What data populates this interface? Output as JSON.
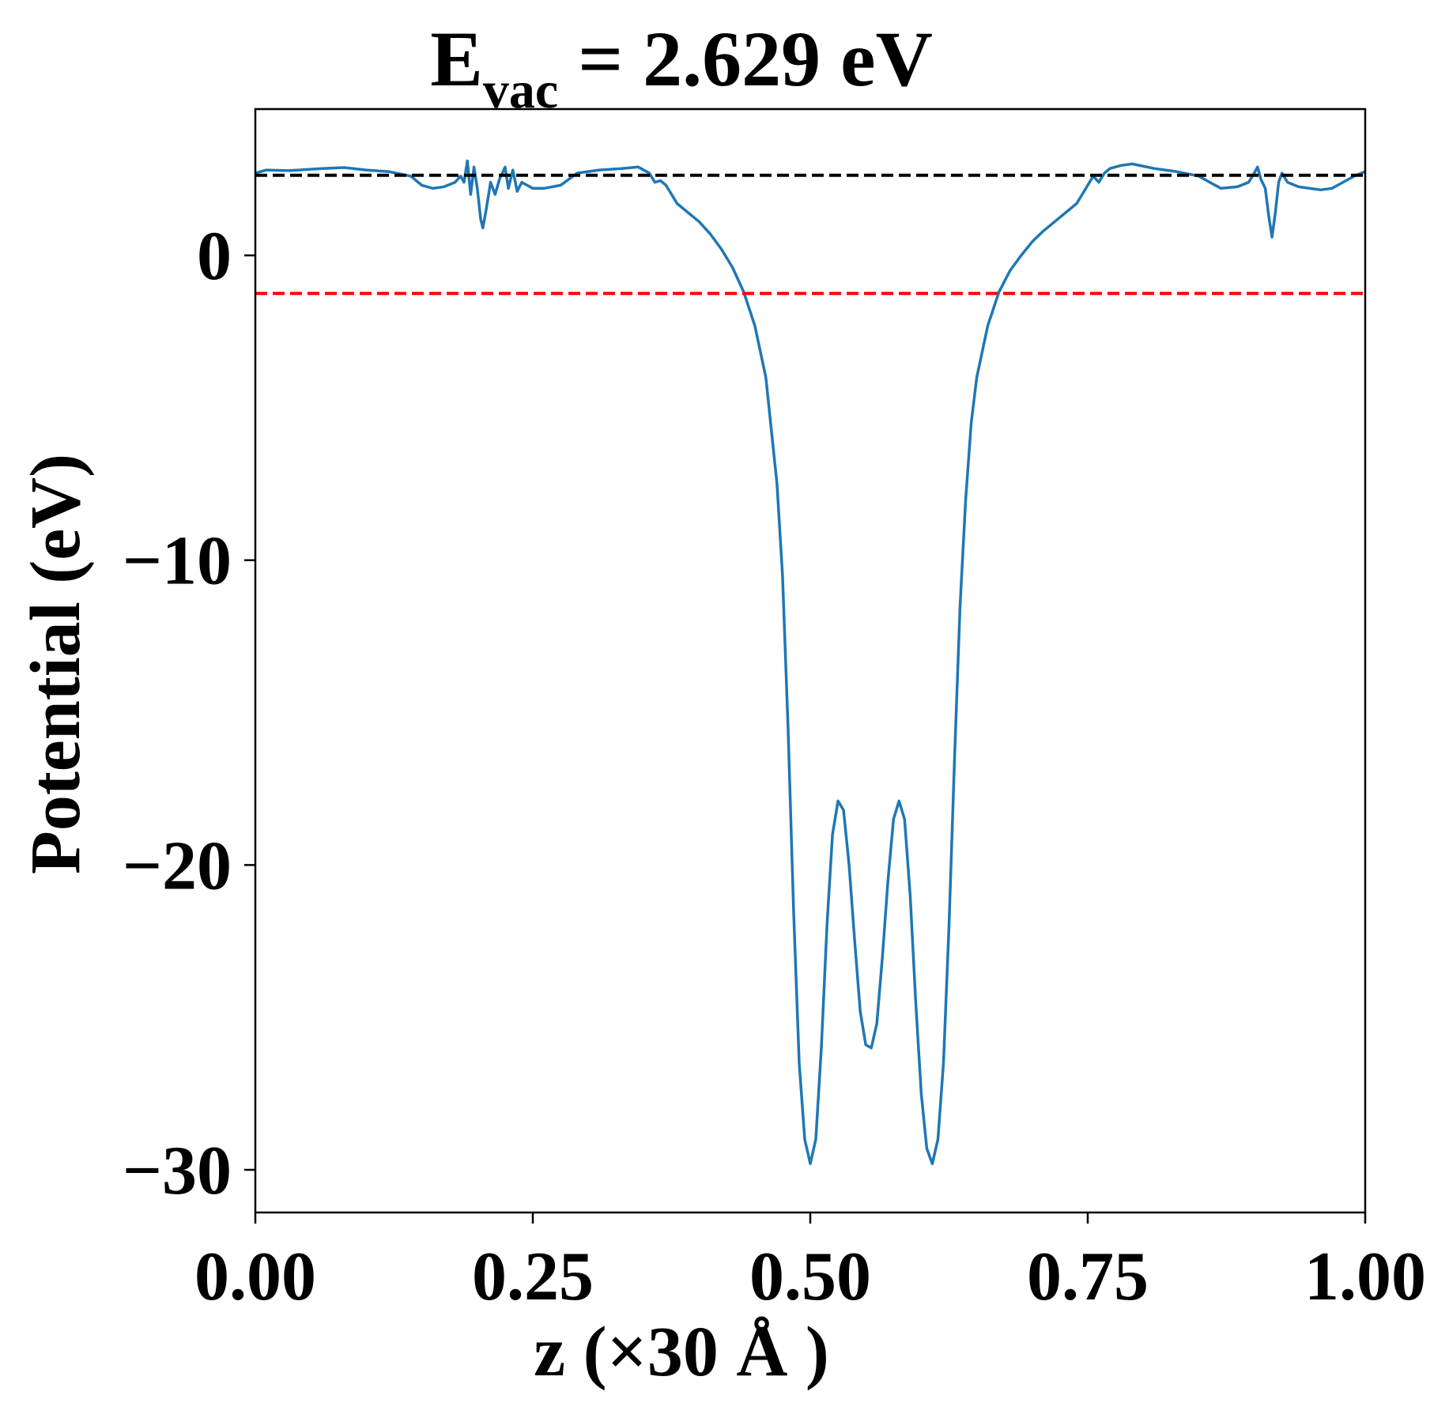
{
  "chart_data": {
    "type": "line",
    "title": {
      "prefix": "E",
      "subscript": "vac",
      "suffix": " = 2.629 eV"
    },
    "xlabel": "z (×30 Å )",
    "ylabel": "Potential (eV)",
    "xlim": [
      0.0,
      1.0
    ],
    "ylim": [
      -31.4,
      4.8
    ],
    "xticks": [
      {
        "value": 0.0,
        "label": "0.00"
      },
      {
        "value": 0.25,
        "label": "0.25"
      },
      {
        "value": 0.5,
        "label": "0.50"
      },
      {
        "value": 0.75,
        "label": "0.75"
      },
      {
        "value": 1.0,
        "label": "1.00"
      }
    ],
    "yticks": [
      {
        "value": 0,
        "label": "0"
      },
      {
        "value": -10,
        "label": "−10"
      },
      {
        "value": -20,
        "label": "−20"
      },
      {
        "value": -30,
        "label": "−30"
      }
    ],
    "grid": false,
    "reference_lines": [
      {
        "kind": "vacuum level",
        "y": 2.629,
        "color": "#000000",
        "style": "dashed"
      },
      {
        "kind": "fermi level",
        "y": -1.25,
        "color": "#ff0000",
        "style": "dashed"
      }
    ],
    "series": [
      {
        "color": "#1f77b4",
        "points": [
          [
            0.0,
            2.7
          ],
          [
            0.01,
            2.8
          ],
          [
            0.03,
            2.78
          ],
          [
            0.06,
            2.85
          ],
          [
            0.08,
            2.88
          ],
          [
            0.1,
            2.8
          ],
          [
            0.12,
            2.75
          ],
          [
            0.14,
            2.6
          ],
          [
            0.15,
            2.3
          ],
          [
            0.16,
            2.2
          ],
          [
            0.17,
            2.25
          ],
          [
            0.18,
            2.4
          ],
          [
            0.185,
            2.6
          ],
          [
            0.188,
            2.4
          ],
          [
            0.191,
            3.1
          ],
          [
            0.194,
            2.0
          ],
          [
            0.197,
            2.9
          ],
          [
            0.2,
            2.2
          ],
          [
            0.203,
            1.2
          ],
          [
            0.205,
            0.9
          ],
          [
            0.208,
            1.5
          ],
          [
            0.212,
            2.4
          ],
          [
            0.216,
            2.0
          ],
          [
            0.22,
            2.5
          ],
          [
            0.225,
            2.9
          ],
          [
            0.228,
            2.2
          ],
          [
            0.232,
            2.8
          ],
          [
            0.236,
            2.1
          ],
          [
            0.24,
            2.4
          ],
          [
            0.25,
            2.2
          ],
          [
            0.26,
            2.2
          ],
          [
            0.275,
            2.3
          ],
          [
            0.29,
            2.7
          ],
          [
            0.31,
            2.8
          ],
          [
            0.33,
            2.85
          ],
          [
            0.345,
            2.9
          ],
          [
            0.355,
            2.7
          ],
          [
            0.36,
            2.4
          ],
          [
            0.365,
            2.45
          ],
          [
            0.37,
            2.3
          ],
          [
            0.38,
            1.7
          ],
          [
            0.39,
            1.4
          ],
          [
            0.4,
            1.1
          ],
          [
            0.41,
            0.7
          ],
          [
            0.42,
            0.2
          ],
          [
            0.43,
            -0.4
          ],
          [
            0.44,
            -1.2
          ],
          [
            0.45,
            -2.3
          ],
          [
            0.46,
            -4.0
          ],
          [
            0.47,
            -7.5
          ],
          [
            0.475,
            -10.5
          ],
          [
            0.48,
            -15.5
          ],
          [
            0.485,
            -21.5
          ],
          [
            0.49,
            -26.5
          ],
          [
            0.495,
            -29.0
          ],
          [
            0.5,
            -29.8
          ],
          [
            0.505,
            -29.0
          ],
          [
            0.51,
            -26.0
          ],
          [
            0.515,
            -22.0
          ],
          [
            0.52,
            -19.0
          ],
          [
            0.525,
            -17.9
          ],
          [
            0.53,
            -18.2
          ],
          [
            0.535,
            -20.0
          ],
          [
            0.54,
            -22.5
          ],
          [
            0.545,
            -24.8
          ],
          [
            0.55,
            -25.9
          ],
          [
            0.555,
            -26.0
          ],
          [
            0.56,
            -25.2
          ],
          [
            0.565,
            -23.0
          ],
          [
            0.57,
            -20.5
          ],
          [
            0.575,
            -18.5
          ],
          [
            0.58,
            -17.9
          ],
          [
            0.585,
            -18.5
          ],
          [
            0.59,
            -21.0
          ],
          [
            0.595,
            -24.5
          ],
          [
            0.6,
            -27.5
          ],
          [
            0.605,
            -29.3
          ],
          [
            0.61,
            -29.8
          ],
          [
            0.615,
            -29.0
          ],
          [
            0.62,
            -26.5
          ],
          [
            0.625,
            -22.0
          ],
          [
            0.63,
            -16.5
          ],
          [
            0.635,
            -11.5
          ],
          [
            0.64,
            -8.0
          ],
          [
            0.645,
            -5.5
          ],
          [
            0.65,
            -4.0
          ],
          [
            0.66,
            -2.3
          ],
          [
            0.67,
            -1.2
          ],
          [
            0.68,
            -0.5
          ],
          [
            0.69,
            0.0
          ],
          [
            0.7,
            0.45
          ],
          [
            0.71,
            0.8
          ],
          [
            0.72,
            1.1
          ],
          [
            0.73,
            1.4
          ],
          [
            0.74,
            1.7
          ],
          [
            0.745,
            2.0
          ],
          [
            0.75,
            2.3
          ],
          [
            0.755,
            2.6
          ],
          [
            0.76,
            2.4
          ],
          [
            0.765,
            2.7
          ],
          [
            0.77,
            2.85
          ],
          [
            0.78,
            2.95
          ],
          [
            0.79,
            3.0
          ],
          [
            0.81,
            2.85
          ],
          [
            0.83,
            2.75
          ],
          [
            0.85,
            2.6
          ],
          [
            0.86,
            2.4
          ],
          [
            0.87,
            2.2
          ],
          [
            0.885,
            2.25
          ],
          [
            0.895,
            2.4
          ],
          [
            0.9,
            2.7
          ],
          [
            0.903,
            2.9
          ],
          [
            0.906,
            2.5
          ],
          [
            0.91,
            2.2
          ],
          [
            0.913,
            1.3
          ],
          [
            0.916,
            0.6
          ],
          [
            0.919,
            1.4
          ],
          [
            0.922,
            2.4
          ],
          [
            0.925,
            2.7
          ],
          [
            0.93,
            2.4
          ],
          [
            0.94,
            2.25
          ],
          [
            0.95,
            2.2
          ],
          [
            0.96,
            2.15
          ],
          [
            0.97,
            2.2
          ],
          [
            0.98,
            2.4
          ],
          [
            0.99,
            2.6
          ],
          [
            1.0,
            2.75
          ]
        ]
      }
    ]
  }
}
